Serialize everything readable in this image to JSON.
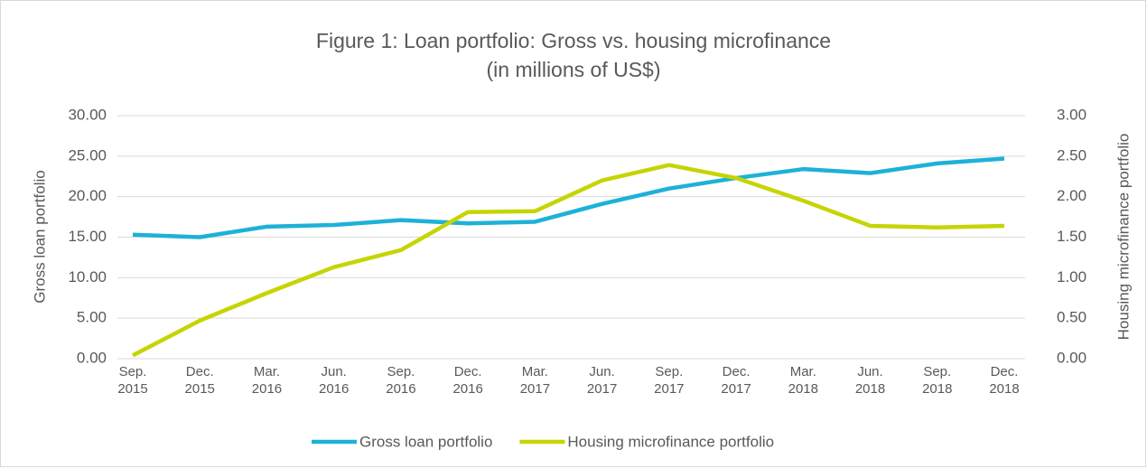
{
  "chart_data": {
    "type": "line",
    "title": "Figure 1: Loan portfolio: Gross vs. housing microfinance",
    "subtitle": "(in millions of US$)",
    "y_label": "Gross loan portfolio",
    "y2_label": "Housing microfinance portfolio",
    "categories": [
      "Sep.\n2015",
      "Dec.\n2015",
      "Mar.\n2016",
      "Jun.\n2016",
      "Sep.\n2016",
      "Dec.\n2016",
      "Mar.\n2017",
      "Jun.\n2017",
      "Sep.\n2017",
      "Dec.\n2017",
      "Mar.\n2018",
      "Jun.\n2018",
      "Sep.\n2018",
      "Dec.\n2018"
    ],
    "series": [
      {
        "name": "Gross loan portfolio",
        "color": "#1eb1d8",
        "values": [
          15.3,
          15.0,
          16.3,
          16.5,
          17.1,
          16.7,
          16.9,
          19.1,
          21.0,
          22.3,
          23.4,
          22.9,
          24.1,
          24.7
        ]
      },
      {
        "name": "Housing microfinance portfolio",
        "color": "#c5d504",
        "axis": "y2",
        "values": [
          0.04,
          0.47,
          0.81,
          1.13,
          1.34,
          1.81,
          1.82,
          2.2,
          2.39,
          2.23,
          1.95,
          1.64,
          1.62,
          1.64
        ]
      }
    ],
    "ylim": [
      0,
      30
    ],
    "yticks": [
      {
        "value": 0,
        "label": "0.00"
      },
      {
        "value": 5,
        "label": "5.00"
      },
      {
        "value": 10,
        "label": "10.00"
      },
      {
        "value": 15,
        "label": "15.00"
      },
      {
        "value": 20,
        "label": "20.00"
      },
      {
        "value": 25,
        "label": "25.00"
      },
      {
        "value": 30,
        "label": "30.00"
      }
    ],
    "y2lim": [
      0,
      3
    ],
    "y2ticks": [
      {
        "value": 0,
        "label": "0.00"
      },
      {
        "value": 0.5,
        "label": "0.50"
      },
      {
        "value": 1,
        "label": "1.00"
      },
      {
        "value": 1.5,
        "label": "1.50"
      },
      {
        "value": 2,
        "label": "2.00"
      },
      {
        "value": 2.5,
        "label": "2.50"
      },
      {
        "value": 3,
        "label": "3.00"
      }
    ],
    "grid": true,
    "legend": "bottom"
  }
}
